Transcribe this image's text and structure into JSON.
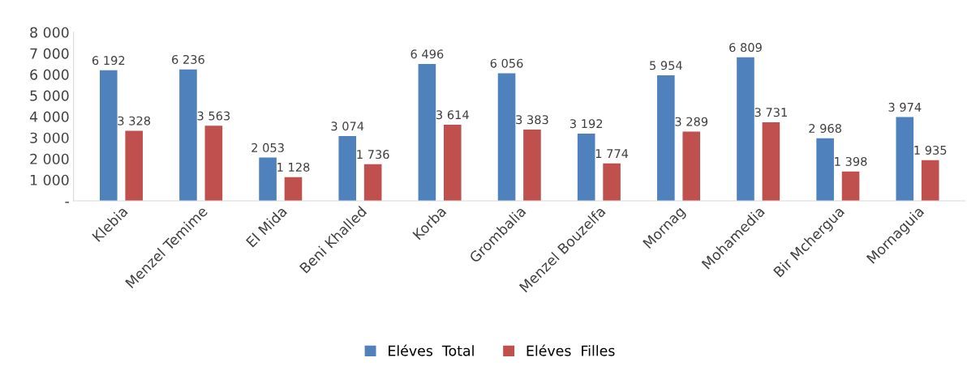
{
  "chart_data": {
    "type": "bar",
    "categories": [
      "Klebia",
      "Menzel Temime",
      "El Mida",
      "Beni Khalled",
      "Korba",
      "Grombalia",
      "Menzel Bouzelfa",
      "Mornag",
      "Mohamedia",
      "Bir Mchergua",
      "Mornaguia"
    ],
    "series": [
      {
        "name": "Eléves  Total",
        "color": "#4f81bd",
        "values": [
          6192,
          6236,
          2053,
          3074,
          6496,
          6056,
          3192,
          5954,
          6809,
          2968,
          3974
        ],
        "value_labels": [
          "6 192",
          "6 236",
          "2 053",
          "3 074",
          "6 496",
          "6 056",
          "3 192",
          "5 954",
          "6 809",
          "2 968",
          "3 974"
        ]
      },
      {
        "name": "Eléves  Filles",
        "color": "#c0504d",
        "values": [
          3328,
          3563,
          1128,
          1736,
          3614,
          3383,
          1774,
          3289,
          3731,
          1398,
          1935
        ],
        "value_labels": [
          "3 328",
          "3 563",
          "1 128",
          "1 736",
          "3 614",
          "3 383",
          "1 774",
          "3 289",
          "3 731",
          "1 398",
          "1 935"
        ]
      }
    ],
    "ylim": [
      0,
      8000
    ],
    "yticks": [
      {
        "value": 0,
        "label": "-"
      },
      {
        "value": 1000,
        "label": "1 000"
      },
      {
        "value": 2000,
        "label": "2 000"
      },
      {
        "value": 3000,
        "label": "3 000"
      },
      {
        "value": 4000,
        "label": "4 000"
      },
      {
        "value": 5000,
        "label": "5 000"
      },
      {
        "value": 6000,
        "label": "6 000"
      },
      {
        "value": 7000,
        "label": "7 000"
      },
      {
        "value": 8000,
        "label": "8 000"
      }
    ],
    "grid": false,
    "legend": "bottom"
  }
}
